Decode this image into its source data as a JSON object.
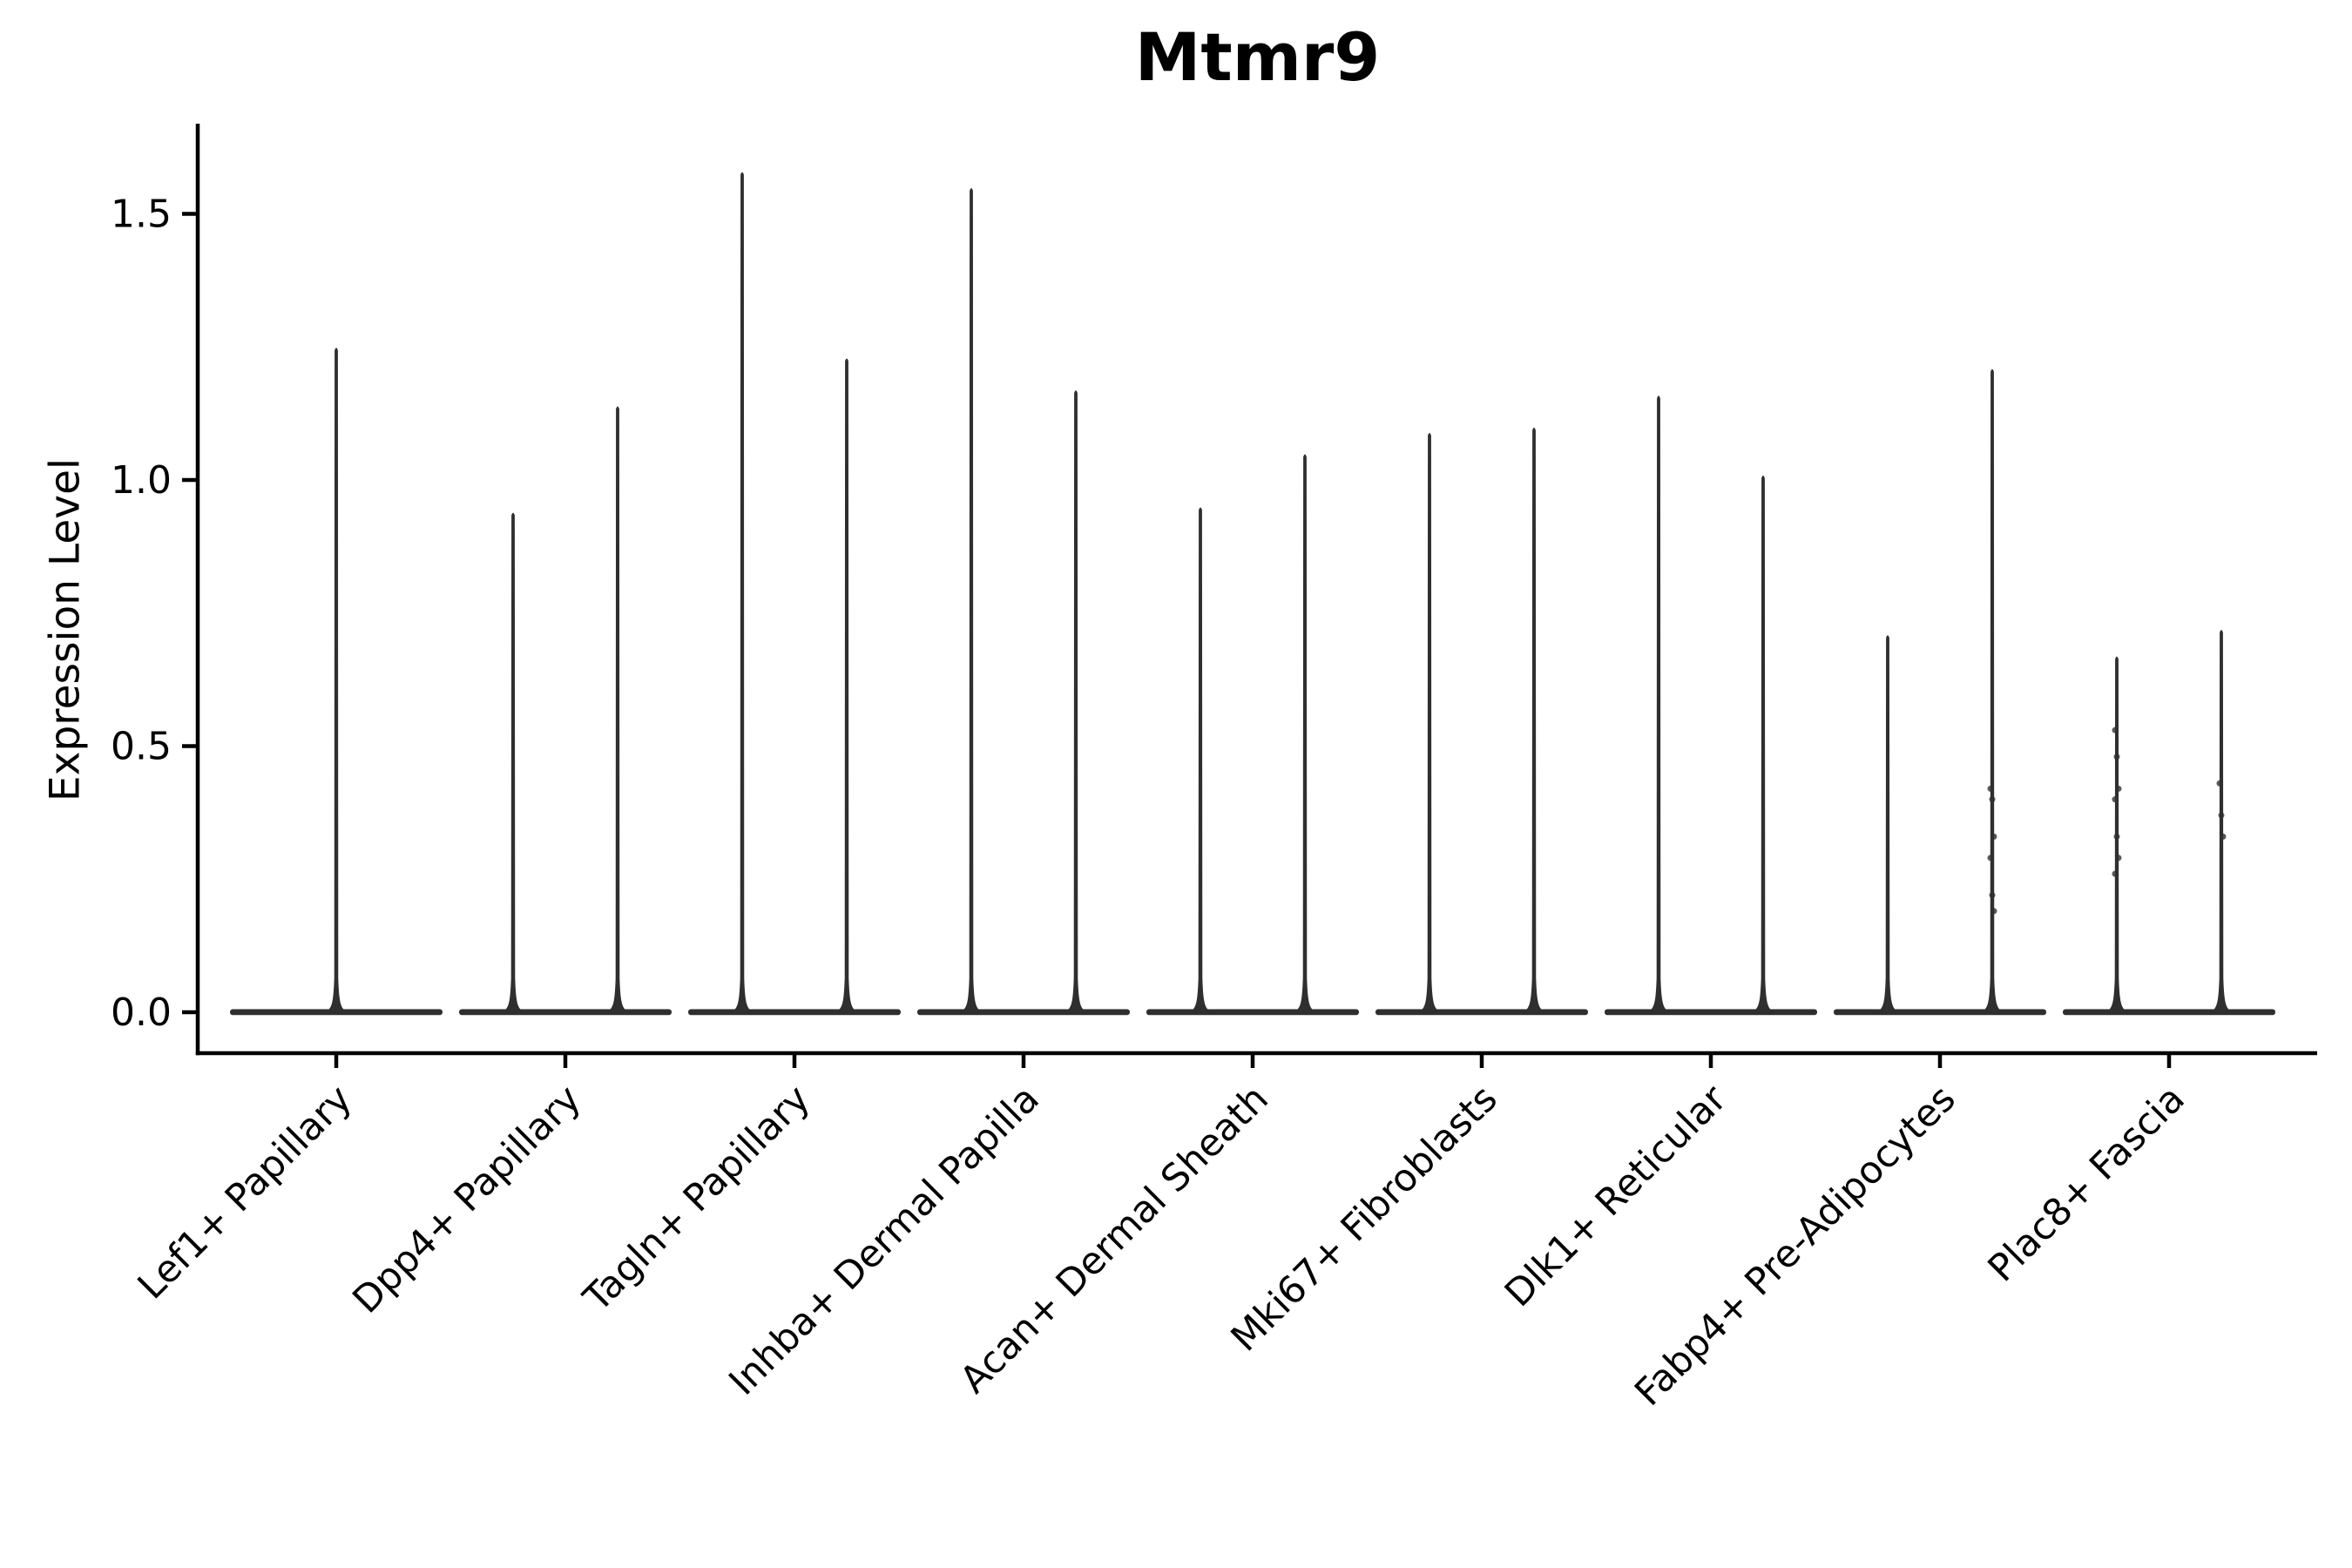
{
  "chart_data": {
    "type": "violin",
    "title": "Mtmr9",
    "ylabel": "Expression Level",
    "xlabel": "",
    "ylim": [
      -0.08,
      1.67
    ],
    "yticks": {
      "values": [
        0,
        0.5,
        1.0,
        1.5
      ],
      "labels": [
        "0.0",
        "0.5",
        "1.0",
        "1.5"
      ]
    },
    "grid": false,
    "legend": "none",
    "violin_color": "#2f2f2f",
    "axis_color": "#000000",
    "categories": [
      {
        "label": "Lef1+ Papillary",
        "violins": [
          {
            "position": "center",
            "max": 1.25,
            "points": []
          }
        ]
      },
      {
        "label": "Dpp4+ Papillary",
        "violins": [
          {
            "position": "left",
            "max": 0.94,
            "points": []
          },
          {
            "position": "right",
            "max": 1.14,
            "points": []
          }
        ]
      },
      {
        "label": "Tagln+ Papillary",
        "violins": [
          {
            "position": "left",
            "max": 1.58,
            "points": []
          },
          {
            "position": "right",
            "max": 1.23,
            "points": []
          }
        ]
      },
      {
        "label": "Inhba+ Dermal Papilla",
        "violins": [
          {
            "position": "left",
            "max": 1.55,
            "points": []
          },
          {
            "position": "right",
            "max": 1.17,
            "points": []
          }
        ]
      },
      {
        "label": "Acan+ Dermal Sheath",
        "violins": [
          {
            "position": "left",
            "max": 0.95,
            "points": []
          },
          {
            "position": "right",
            "max": 1.05,
            "points": []
          }
        ]
      },
      {
        "label": "Mki67+ Fibroblasts",
        "violins": [
          {
            "position": "left",
            "max": 1.09,
            "points": []
          },
          {
            "position": "right",
            "max": 1.1,
            "points": []
          }
        ]
      },
      {
        "label": "Dlk1+ Reticular",
        "violins": [
          {
            "position": "left",
            "max": 1.16,
            "points": []
          },
          {
            "position": "right",
            "max": 1.01,
            "points": []
          }
        ]
      },
      {
        "label": "Fabp4+ Pre-Adipocytes",
        "violins": [
          {
            "position": "left",
            "max": 0.71,
            "points": []
          },
          {
            "position": "right",
            "max": 1.21,
            "points": [
              0.42,
              0.4,
              0.33,
              0.29,
              0.22,
              0.19
            ]
          }
        ]
      },
      {
        "label": "Plac8+ Fascia",
        "violins": [
          {
            "position": "left",
            "max": 0.67,
            "points": [
              0.53,
              0.48,
              0.42,
              0.4,
              0.33,
              0.29,
              0.26
            ]
          },
          {
            "position": "right",
            "max": 0.72,
            "points": [
              0.43,
              0.37,
              0.33
            ]
          }
        ]
      }
    ]
  }
}
